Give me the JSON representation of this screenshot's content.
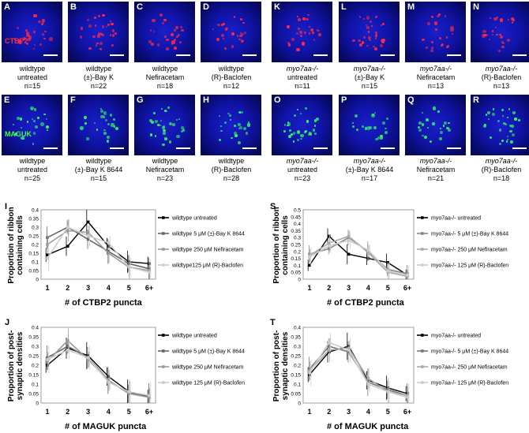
{
  "image_panels": {
    "row1": [
      {
        "letter": "A",
        "stain": "CTBP2",
        "line1": "wildtype",
        "line2": "untreated",
        "n": "n=15"
      },
      {
        "letter": "B",
        "line1": "wildtype",
        "line2": "(±)-Bay K",
        "n": "n=22"
      },
      {
        "letter": "C",
        "line1": "wildtype",
        "line2": "Nefiracetam",
        "n": "n=18"
      },
      {
        "letter": "D",
        "line1": "wildtype",
        "line2": "(R)-Baclofen",
        "n": "n=12"
      },
      {
        "letter": "K",
        "line1": "myo7aa-/-",
        "line2": "untreated",
        "n": "n=11"
      },
      {
        "letter": "L",
        "line1": "myo7aa-/-",
        "line2": "(±)-Bay K",
        "n": "n=15"
      },
      {
        "letter": "M",
        "line1": "myo7aa-/-",
        "line2": "Nefiracetam",
        "n": "n=13"
      },
      {
        "letter": "N",
        "line1": "myo7aa-/-",
        "line2": "(R)-Baclofen",
        "n": "n=13"
      }
    ],
    "row2": [
      {
        "letter": "E",
        "stain": "MAGUK",
        "line1": "wildtype",
        "line2": "untreated",
        "n": "n=25"
      },
      {
        "letter": "F",
        "line1": "wildtype",
        "line2": "(±)-Bay K 8644",
        "n": "n=15"
      },
      {
        "letter": "G",
        "line1": "wildtype",
        "line2": "Nefiracetam",
        "n": "n=23"
      },
      {
        "letter": "H",
        "line1": "wildtype",
        "line2": "(R)-Baclofen",
        "n": "n=28"
      },
      {
        "letter": "O",
        "line1": "myo7aa-/-",
        "line2": "untreated",
        "n": "n=23"
      },
      {
        "letter": "P",
        "line1": "myo7aa-/-",
        "line2": "(±)-Bay K 8644",
        "n": "n=17"
      },
      {
        "letter": "Q",
        "line1": "myo7aa-/-",
        "line2": "Nefiracetam",
        "n": "n=21"
      },
      {
        "letter": "R",
        "line1": "myo7aa-/-",
        "line2": "(R)-Baclofen",
        "n": "n=18"
      }
    ],
    "colors": {
      "ctbp2": "#ff2a40",
      "maguk": "#30ff60",
      "background": "#1014a8"
    }
  },
  "chart_data": [
    {
      "panel": "I",
      "type": "line",
      "x": [
        "1",
        "2",
        "3",
        "4",
        "5",
        "6+"
      ],
      "xlabel": "# of CTBP2 puncta",
      "ylabel": "Proportion of ribbon containing cells",
      "ylim": [
        0,
        0.4
      ],
      "yticks": [
        "0",
        "0.05",
        "0.1",
        "0.15",
        "0.2",
        "0.25",
        "0.3",
        "0.35",
        "0.4"
      ],
      "series": [
        {
          "name": "wildtype untreated",
          "values": [
            0.14,
            0.19,
            0.33,
            0.19,
            0.1,
            0.09
          ],
          "color": "#000000"
        },
        {
          "name": "wildtype 5 μM (±)-Bay K 8644",
          "values": [
            0.24,
            0.3,
            0.23,
            0.16,
            0.09,
            0.06
          ],
          "color": "#666666"
        },
        {
          "name": "wildtype 250 μM Nefiracetam",
          "values": [
            0.2,
            0.28,
            0.27,
            0.15,
            0.07,
            0.05
          ],
          "color": "#9a9a9a"
        },
        {
          "name": "wildtype125 μM (R)-Baclofen",
          "values": [
            0.12,
            0.3,
            0.25,
            0.21,
            0.07,
            0.04
          ],
          "color": "#cccccc"
        }
      ],
      "legend_position": "right"
    },
    {
      "panel": "S",
      "type": "line",
      "x": [
        "1",
        "2",
        "3",
        "4",
        "5",
        "6+"
      ],
      "xlabel": "# of CTBP2 puncta",
      "ylabel": "Proportion of ribbon containing cells",
      "ylim": [
        0,
        0.5
      ],
      "yticks": [
        "0",
        "0.05",
        "0.1",
        "0.15",
        "0.2",
        "0.25",
        "0.3",
        "0.35",
        "0.4",
        "0.45",
        "0.5"
      ],
      "series": [
        {
          "name": "myo7aa-/- untreated",
          "values": [
            0.1,
            0.31,
            0.18,
            0.15,
            0.12,
            0.03
          ],
          "color": "#000000"
        },
        {
          "name": "myo7aa-/- 5 μM (±)-Bay K 8644",
          "values": [
            0.18,
            0.22,
            0.3,
            0.2,
            0.07,
            0.04
          ],
          "color": "#888888"
        },
        {
          "name": "myo7aa-/- 250 μM Nefiracetam",
          "values": [
            0.17,
            0.26,
            0.31,
            0.19,
            0.05,
            0.02
          ],
          "color": "#aaaaaa"
        },
        {
          "name": "myo7aa-/- 125 μM (R)-Baclofen",
          "values": [
            0.16,
            0.24,
            0.28,
            0.21,
            0.06,
            0.03
          ],
          "color": "#cccccc"
        }
      ],
      "legend_position": "right"
    },
    {
      "panel": "J",
      "type": "line",
      "x": [
        "1",
        "2",
        "3",
        "4",
        "5",
        "6+"
      ],
      "xlabel": "# of MAGUK puncta",
      "ylabel": "Proportion of post-synaptic densities",
      "ylim": [
        0,
        0.4
      ],
      "yticks": [
        "0",
        "0.05",
        "0.1",
        "0.15",
        "0.2",
        "0.25",
        "0.3",
        "0.35",
        "0.4"
      ],
      "series": [
        {
          "name": "wildtype untreated",
          "values": [
            0.2,
            0.29,
            0.25,
            0.14,
            0.06,
            0.03
          ],
          "color": "#000000"
        },
        {
          "name": "wildtype 5 μM (±)-Bay K 8644",
          "values": [
            0.24,
            0.3,
            0.24,
            0.12,
            0.05,
            0.04
          ],
          "color": "#666666"
        },
        {
          "name": "wildtype 250 μM Nefiracetam",
          "values": [
            0.22,
            0.33,
            0.23,
            0.12,
            0.05,
            0.03
          ],
          "color": "#9a9a9a"
        },
        {
          "name": "wildtype 125 μM (R)-Baclofen",
          "values": [
            0.23,
            0.28,
            0.24,
            0.11,
            0.06,
            0.04
          ],
          "color": "#cccccc"
        }
      ],
      "legend_position": "right"
    },
    {
      "panel": "T",
      "type": "line",
      "x": [
        "1",
        "2",
        "3",
        "4",
        "5",
        "6+"
      ],
      "xlabel": "# of MAGUK puncta",
      "ylabel": "Proportion of post-synaptic densities",
      "ylim": [
        0,
        0.4
      ],
      "yticks": [
        "0",
        "0.05",
        "0.1",
        "0.15",
        "0.2",
        "0.25",
        "0.3",
        "0.35",
        "0.4"
      ],
      "series": [
        {
          "name": "myo7aa-/- untreated",
          "values": [
            0.15,
            0.27,
            0.3,
            0.12,
            0.08,
            0.05
          ],
          "color": "#000000"
        },
        {
          "name": "myo7aa-/- 5 μM (±)-Bay K 8644",
          "values": [
            0.18,
            0.3,
            0.27,
            0.11,
            0.07,
            0.04
          ],
          "color": "#777777"
        },
        {
          "name": "myo7aa-/- 250 μM Nefiracetam",
          "values": [
            0.17,
            0.28,
            0.29,
            0.13,
            0.06,
            0.04
          ],
          "color": "#aaaaaa"
        },
        {
          "name": "myo7aa-/- 125 μM (R)-Baclofen",
          "values": [
            0.16,
            0.32,
            0.28,
            0.1,
            0.06,
            0.03
          ],
          "color": "#cccccc"
        }
      ],
      "legend_position": "right"
    }
  ]
}
